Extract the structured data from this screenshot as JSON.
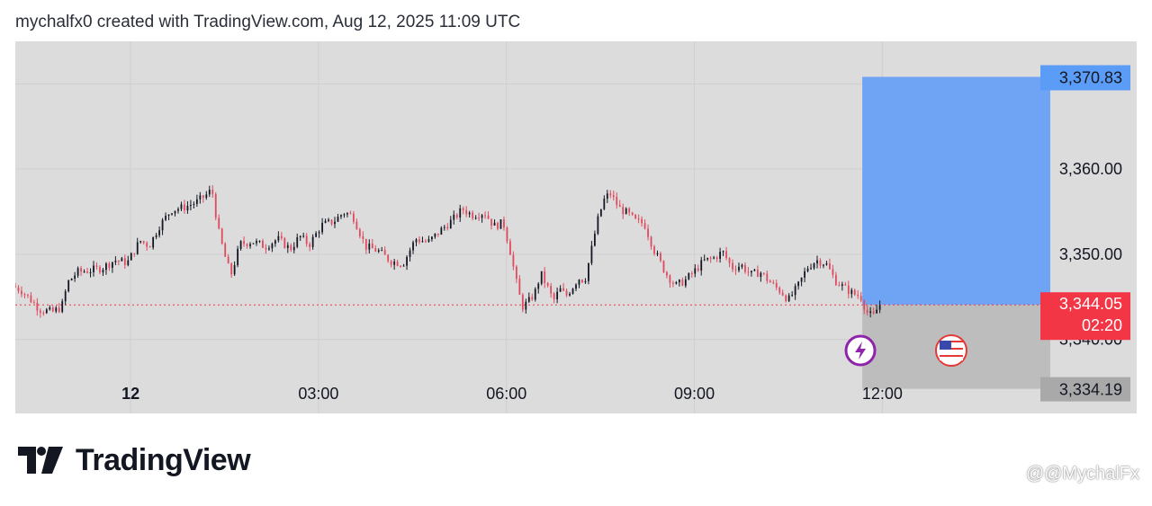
{
  "header": {
    "text": "mychalfx0 created with TradingView.com, Aug 12, 2025 11:09 UTC"
  },
  "brand": {
    "name": "TradingView"
  },
  "watermark": {
    "text": "@@MychalFx"
  },
  "colors": {
    "plot_bg": "#dcdcdc",
    "grid": "#cfcfcf",
    "up_candle": "#131722",
    "down_candle": "#e04a5f",
    "target_zone": "#6fa3f4",
    "stop_zone": "#bdbdbd",
    "target_label": "#5b9cf6",
    "stop_label": "#a9a9a9",
    "current_label": "#f23645"
  },
  "chart_data": {
    "type": "candlestick",
    "symbol_timeframe": "1m",
    "x_ticks": [
      "12",
      "03:00",
      "06:00",
      "09:00",
      "12:00"
    ],
    "x_tick_hours": [
      0,
      3,
      6,
      9,
      12
    ],
    "y_ticks": [
      "3,360.00",
      "3,350.00",
      "3,340.00"
    ],
    "y_tick_values": [
      3360,
      3350,
      3340
    ],
    "ylim": [
      3331.3,
      3375.0
    ],
    "xlim_hours": [
      -1.84,
      16.06
    ],
    "price_path": [
      [
        -1.84,
        3346.3
      ],
      [
        -1.7,
        3345.8
      ],
      [
        -1.55,
        3344.7
      ],
      [
        -1.4,
        3343.5
      ],
      [
        -1.2,
        3343.2
      ],
      [
        -1.05,
        3343.8
      ],
      [
        -0.95,
        3346.7
      ],
      [
        -0.8,
        3347.9
      ],
      [
        -0.6,
        3348.1
      ],
      [
        -0.4,
        3348.4
      ],
      [
        -0.2,
        3349.3
      ],
      [
        0.0,
        3349.0
      ],
      [
        0.2,
        3351.6
      ],
      [
        0.35,
        3351.0
      ],
      [
        0.5,
        3353.2
      ],
      [
        0.7,
        3355.2
      ],
      [
        0.9,
        3355.5
      ],
      [
        1.1,
        3356.1
      ],
      [
        1.25,
        3356.9
      ],
      [
        1.35,
        3357.6
      ],
      [
        1.45,
        3352.8
      ],
      [
        1.55,
        3349.9
      ],
      [
        1.65,
        3347.5
      ],
      [
        1.8,
        3351.2
      ],
      [
        2.0,
        3351.5
      ],
      [
        2.2,
        3350.9
      ],
      [
        2.4,
        3351.8
      ],
      [
        2.6,
        3350.6
      ],
      [
        2.75,
        3352.1
      ],
      [
        2.9,
        3351.1
      ],
      [
        3.1,
        3353.4
      ],
      [
        3.3,
        3353.9
      ],
      [
        3.45,
        3354.9
      ],
      [
        3.6,
        3354.5
      ],
      [
        3.8,
        3350.9
      ],
      [
        4.0,
        3350.4
      ],
      [
        4.2,
        3349.2
      ],
      [
        4.4,
        3348.9
      ],
      [
        4.6,
        3351.8
      ],
      [
        4.8,
        3351.4
      ],
      [
        5.0,
        3352.8
      ],
      [
        5.2,
        3354.1
      ],
      [
        5.35,
        3355.3
      ],
      [
        5.5,
        3354.6
      ],
      [
        5.7,
        3354.9
      ],
      [
        5.85,
        3353.3
      ],
      [
        6.0,
        3353.7
      ],
      [
        6.1,
        3350.7
      ],
      [
        6.2,
        3347.0
      ],
      [
        6.3,
        3343.8
      ],
      [
        6.4,
        3344.4
      ],
      [
        6.5,
        3345.4
      ],
      [
        6.6,
        3347.7
      ],
      [
        6.7,
        3346.2
      ],
      [
        6.8,
        3344.5
      ],
      [
        6.9,
        3345.9
      ],
      [
        7.0,
        3345.1
      ],
      [
        7.1,
        3346.1
      ],
      [
        7.2,
        3347.2
      ],
      [
        7.3,
        3346.9
      ],
      [
        7.4,
        3350.3
      ],
      [
        7.5,
        3353.8
      ],
      [
        7.6,
        3356.3
      ],
      [
        7.7,
        3357.2
      ],
      [
        7.85,
        3355.4
      ],
      [
        8.0,
        3354.7
      ],
      [
        8.1,
        3353.9
      ],
      [
        8.25,
        3353.6
      ],
      [
        8.4,
        3350.6
      ],
      [
        8.5,
        3349.1
      ],
      [
        8.6,
        3347.7
      ],
      [
        8.75,
        3346.3
      ],
      [
        8.9,
        3346.9
      ],
      [
        9.05,
        3348.0
      ],
      [
        9.2,
        3349.2
      ],
      [
        9.35,
        3349.5
      ],
      [
        9.5,
        3350.3
      ],
      [
        9.65,
        3348.4
      ],
      [
        9.8,
        3348.7
      ],
      [
        9.95,
        3347.6
      ],
      [
        10.1,
        3347.9
      ],
      [
        10.3,
        3346.4
      ],
      [
        10.45,
        3345.5
      ],
      [
        10.55,
        3344.6
      ],
      [
        10.7,
        3346.2
      ],
      [
        10.85,
        3348.4
      ],
      [
        11.0,
        3349.3
      ],
      [
        11.15,
        3348.9
      ],
      [
        11.3,
        3346.9
      ],
      [
        11.45,
        3346.0
      ],
      [
        11.6,
        3345.3
      ],
      [
        11.7,
        3345.1
      ],
      [
        11.8,
        3343.2
      ],
      [
        11.9,
        3342.6
      ],
      [
        12.0,
        3344.05
      ]
    ],
    "position": {
      "type": "long",
      "entry": 3344.05,
      "target": 3370.83,
      "stop": 3334.19,
      "start_hour": 11.68,
      "end_hour": 14.68
    },
    "price_labels": {
      "target": "3,370.83",
      "current": "3,344.05",
      "countdown": "02:20",
      "stop": "3,334.19"
    },
    "event_icons": [
      "lightning-icon",
      "us-flag-icon"
    ]
  }
}
